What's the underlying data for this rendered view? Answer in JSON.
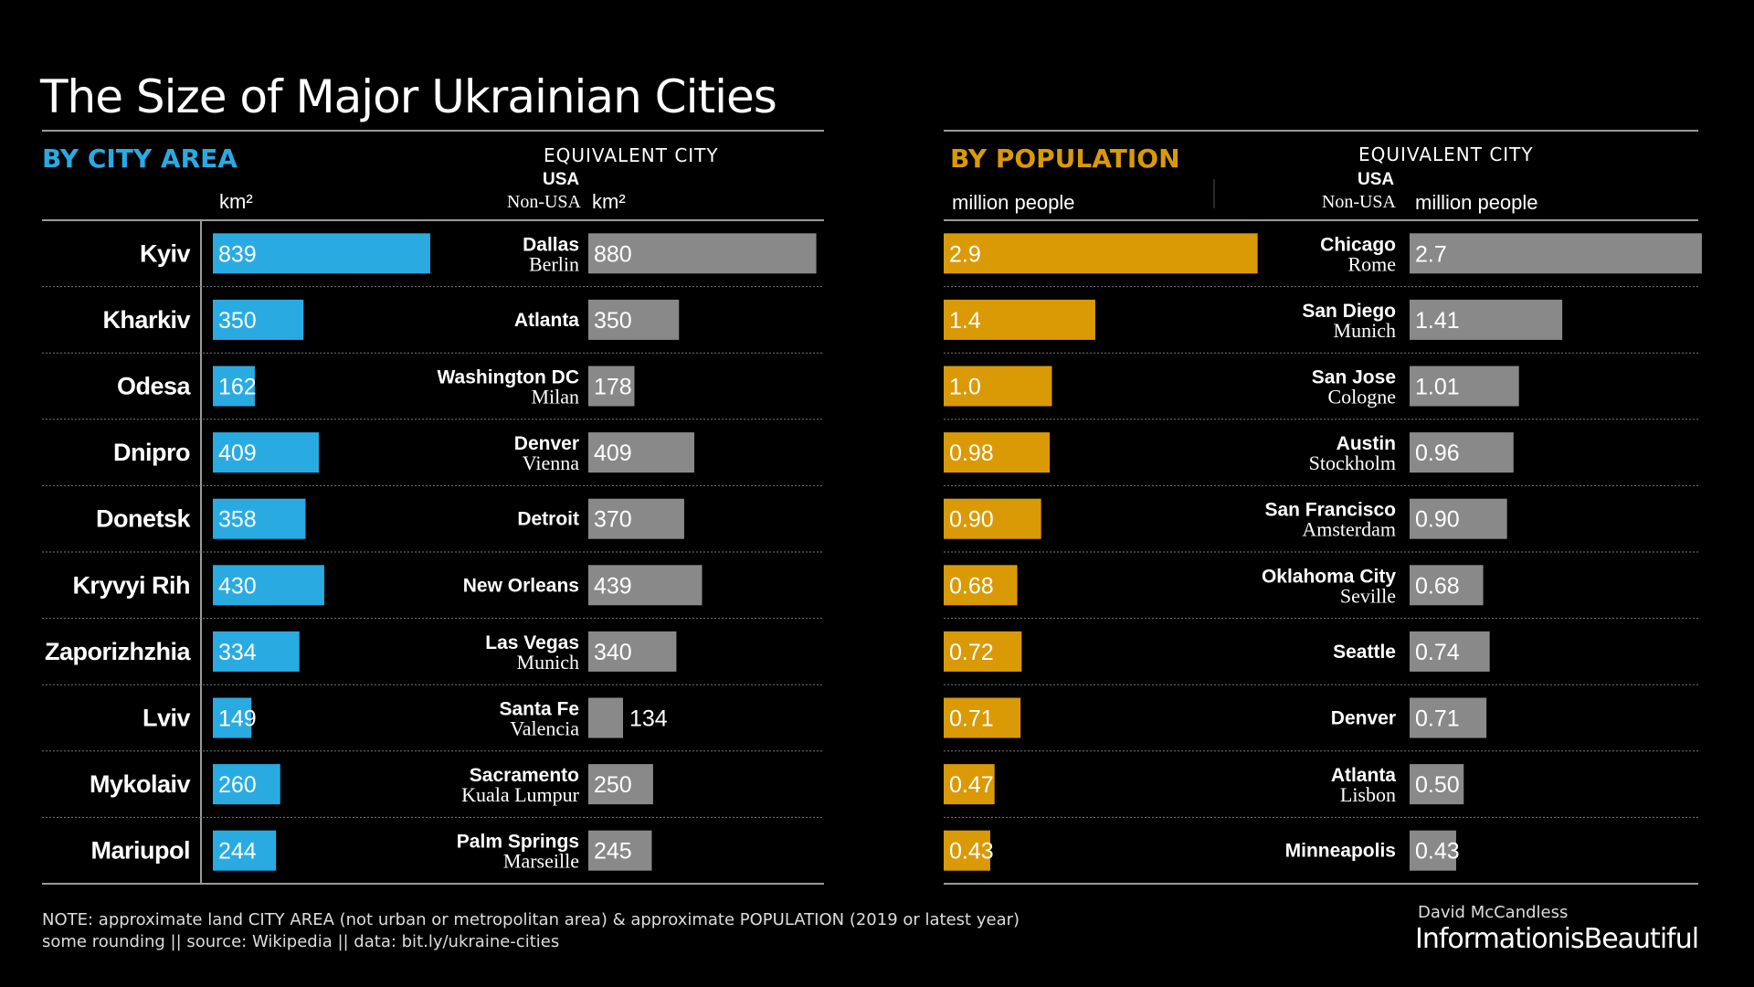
{
  "title": "The Size of Major Ukrainian Cities",
  "colors": {
    "background": "#000000",
    "area": "#29abe2",
    "population": "#d99a06",
    "equivalent": "#898989"
  },
  "area_panel": {
    "heading": "BY CITY AREA",
    "equivalent_heading": "EQUIVALENT CITY",
    "usa_label": "USA",
    "non_usa_label": "Non-USA",
    "unit_left": "km²",
    "unit_right": "km²"
  },
  "population_panel": {
    "heading": "BY POPULATION",
    "equivalent_heading": "EQUIVALENT CITY",
    "usa_label": "USA",
    "non_usa_label": "Non-USA",
    "unit_left": "million people",
    "unit_right": "million people"
  },
  "chart_data": [
    {
      "type": "bar",
      "title": "BY CITY AREA",
      "unit": "km²",
      "categories": [
        "Kyiv",
        "Kharkiv",
        "Odesa",
        "Dnipro",
        "Donetsk",
        "Kryvyi Rih",
        "Zaporizhzhia",
        "Lviv",
        "Mykolaiv",
        "Mariupol"
      ],
      "values": [
        839,
        350,
        162,
        409,
        358,
        430,
        334,
        149,
        260,
        244
      ],
      "value_labels": [
        "839",
        "350",
        "162",
        "409",
        "358",
        "430",
        "334",
        "149",
        "260",
        "244"
      ],
      "equivalent_usa": [
        "Dallas",
        "Atlanta",
        "Washington DC",
        "Denver",
        "Detroit",
        "New Orleans",
        "Las Vegas",
        "Santa Fe",
        "Sacramento",
        "Palm Springs"
      ],
      "equivalent_non_usa": [
        "Berlin",
        "",
        "Milan",
        "Vienna",
        "",
        "",
        "Munich",
        "Valencia",
        "Kuala Lumpur",
        "Marseille"
      ],
      "equivalent_values": [
        880,
        350,
        178,
        409,
        370,
        439,
        340,
        134,
        250,
        245
      ],
      "equivalent_labels": [
        "880",
        "350",
        "178",
        "409",
        "370",
        "439",
        "340",
        "134",
        "250",
        "245"
      ]
    },
    {
      "type": "bar",
      "title": "BY POPULATION",
      "unit": "million people",
      "categories": [
        "Kyiv",
        "Kharkiv",
        "Odesa",
        "Dnipro",
        "Donetsk",
        "Kryvyi Rih",
        "Zaporizhzhia",
        "Lviv",
        "Mykolaiv",
        "Mariupol"
      ],
      "values": [
        2.9,
        1.4,
        1.0,
        0.98,
        0.9,
        0.68,
        0.72,
        0.71,
        0.47,
        0.43
      ],
      "value_labels": [
        "2.9",
        "1.4",
        "1.0",
        "0.98",
        "0.90",
        "0.68",
        "0.72",
        "0.71",
        "0.47",
        "0.43"
      ],
      "equivalent_usa": [
        "Chicago",
        "San Diego",
        "San Jose",
        "Austin",
        "San Francisco",
        "Oklahoma City",
        "Seattle",
        "Denver",
        "Atlanta",
        "Minneapolis"
      ],
      "equivalent_non_usa": [
        "Rome",
        "Munich",
        "Cologne",
        "Stockholm",
        "Amsterdam",
        "Seville",
        "",
        "",
        "Lisbon",
        ""
      ],
      "equivalent_values": [
        2.7,
        1.41,
        1.01,
        0.96,
        0.9,
        0.68,
        0.74,
        0.71,
        0.5,
        0.43
      ],
      "equivalent_labels": [
        "2.7",
        "1.41",
        "1.01",
        "0.96",
        "0.90",
        "0.68",
        "0.74",
        "0.71",
        "0.50",
        "0.43"
      ]
    }
  ],
  "footer": {
    "note_line1": "NOTE: approximate land CITY AREA (not urban or metropolitan area) & approximate POPULATION (2019 or latest year)",
    "note_line2": "some rounding || source: Wikipedia || data: bit.ly/ukraine-cities",
    "author": "David McCandless",
    "brand": "InformationisBeautiful"
  }
}
